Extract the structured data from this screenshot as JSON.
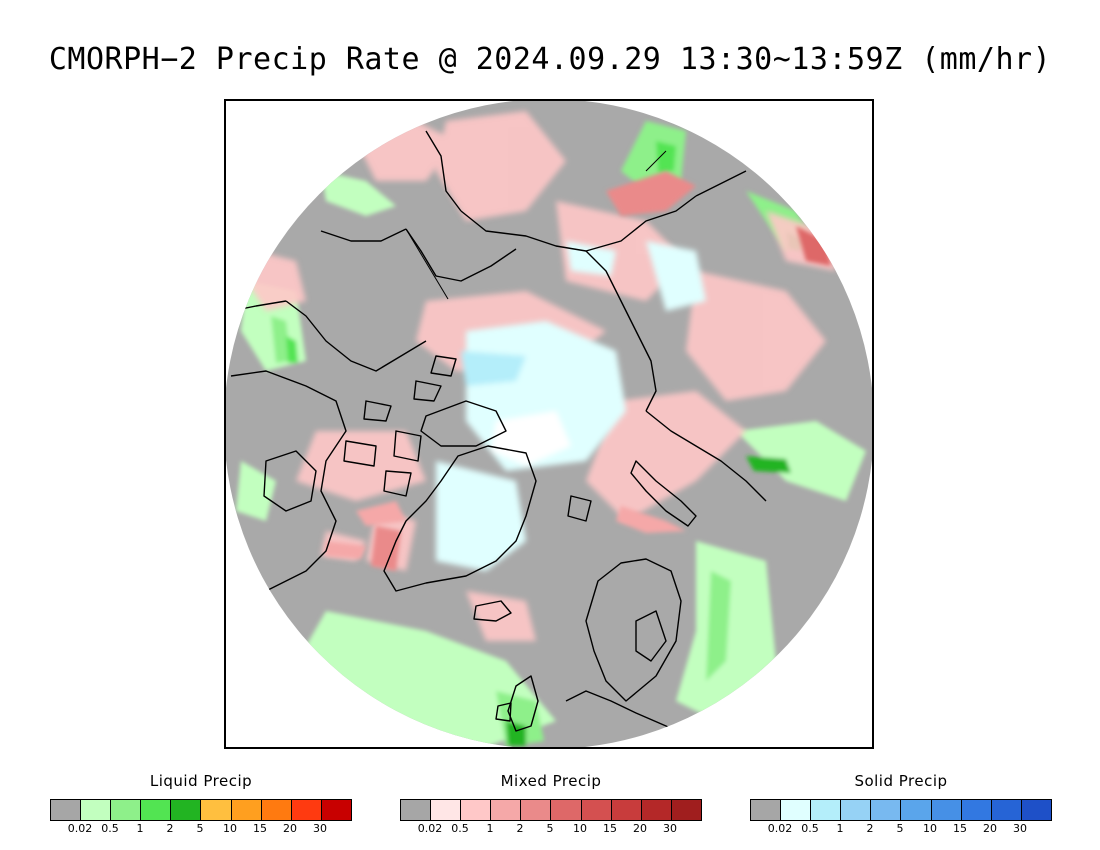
{
  "title": "CMORPH−2 Precip Rate @ 2024.09.29 13:30~13:59Z (mm/hr)",
  "map": {
    "projection": "north-polar-stereographic",
    "disc_color": "#a9a9a9",
    "coastline_color": "#000000"
  },
  "legends": [
    {
      "title": "Liquid Precip",
      "colors": [
        "#a6a6a6",
        "#c2ffbf",
        "#8ef08a",
        "#52e452",
        "#22b422",
        "#ffbf3f",
        "#ff9f1f",
        "#ff7a10",
        "#ff3a10",
        "#c80000"
      ],
      "ticks": [
        "0.02",
        "0.5",
        "1",
        "2",
        "5",
        "10",
        "15",
        "20",
        "30"
      ]
    },
    {
      "title": "Mixed Precip",
      "colors": [
        "#a6a6a6",
        "#ffe6e6",
        "#ffc8c8",
        "#f5a8a8",
        "#ea8a8a",
        "#de6868",
        "#d45050",
        "#c83c3c",
        "#b42828",
        "#a01e1e"
      ],
      "ticks": [
        "0.02",
        "0.5",
        "1",
        "2",
        "5",
        "10",
        "15",
        "20",
        "30"
      ]
    },
    {
      "title": "Solid Precip",
      "colors": [
        "#a6a6a6",
        "#e0ffff",
        "#b4eefa",
        "#96d2f5",
        "#78b9f0",
        "#5aa5eb",
        "#4690e6",
        "#3278e1",
        "#2664d6",
        "#1e50c8"
      ],
      "ticks": [
        "0.02",
        "0.5",
        "1",
        "2",
        "5",
        "10",
        "15",
        "20",
        "30"
      ]
    }
  ]
}
